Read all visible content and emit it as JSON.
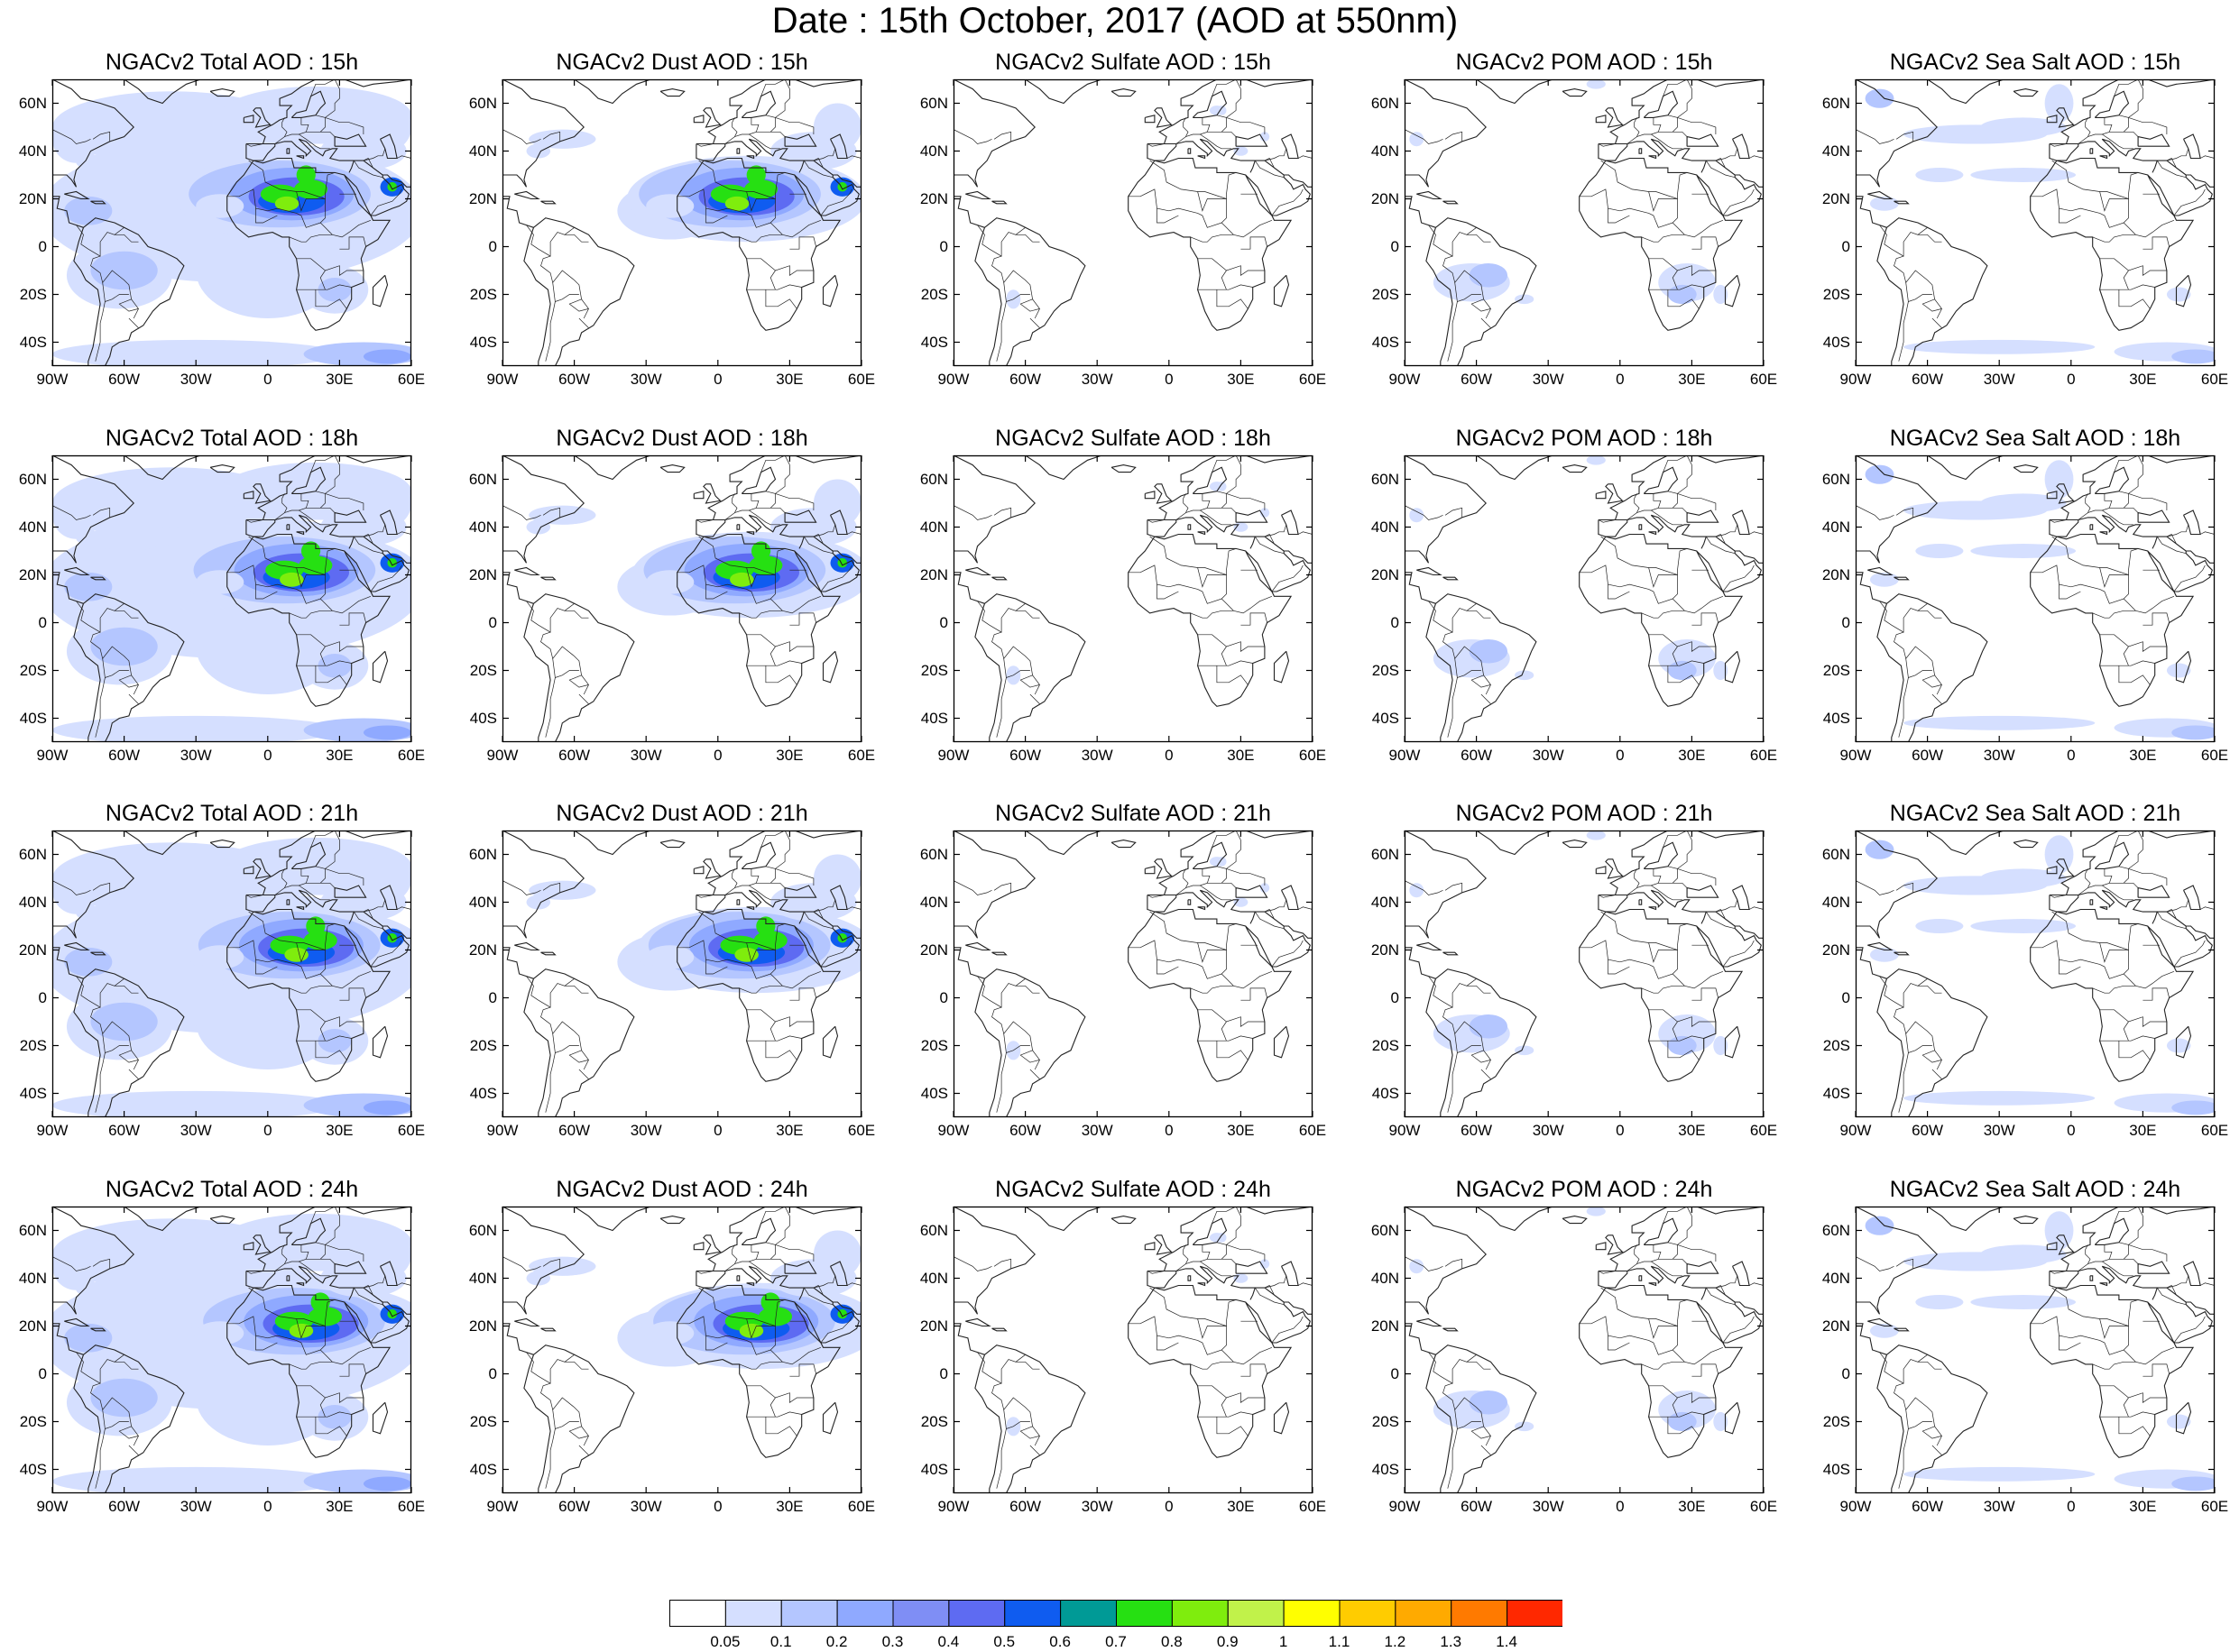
{
  "title": "Date : 15th October, 2017 (AOD at 550nm)",
  "rows": [
    {
      "hour": "15h",
      "panels": [
        {
          "type": "total",
          "title": "NGACv2 Total AOD : 15h"
        },
        {
          "type": "dust",
          "title": "NGACv2 Dust AOD : 15h"
        },
        {
          "type": "sulfate",
          "title": "NGACv2 Sulfate AOD : 15h"
        },
        {
          "type": "pom",
          "title": "NGACv2 POM AOD : 15h"
        },
        {
          "type": "seasalt",
          "title": "NGACv2 Sea Salt AOD : 15h"
        }
      ]
    },
    {
      "hour": "18h",
      "panels": [
        {
          "type": "total",
          "title": "NGACv2 Total AOD : 18h"
        },
        {
          "type": "dust",
          "title": "NGACv2 Dust AOD : 18h"
        },
        {
          "type": "sulfate",
          "title": "NGACv2 Sulfate AOD : 18h"
        },
        {
          "type": "pom",
          "title": "NGACv2 POM AOD : 18h"
        },
        {
          "type": "seasalt",
          "title": "NGACv2 Sea Salt AOD : 18h"
        }
      ]
    },
    {
      "hour": "21h",
      "panels": [
        {
          "type": "total",
          "title": "NGACv2 Total AOD : 21h"
        },
        {
          "type": "dust",
          "title": "NGACv2 Dust AOD : 21h"
        },
        {
          "type": "sulfate",
          "title": "NGACv2 Sulfate AOD : 21h"
        },
        {
          "type": "pom",
          "title": "NGACv2 POM AOD : 21h"
        },
        {
          "type": "seasalt",
          "title": "NGACv2 Sea Salt AOD : 21h"
        }
      ]
    },
    {
      "hour": "24h",
      "panels": [
        {
          "type": "total",
          "title": "NGACv2 Total AOD : 24h"
        },
        {
          "type": "dust",
          "title": "NGACv2 Dust AOD : 24h"
        },
        {
          "type": "sulfate",
          "title": "NGACv2 Sulfate AOD : 24h"
        },
        {
          "type": "pom",
          "title": "NGACv2 POM AOD : 24h"
        },
        {
          "type": "seasalt",
          "title": "NGACv2 Sea Salt  AOD : 24h"
        }
      ]
    }
  ],
  "lat_labels": [
    "60N",
    "40N",
    "20N",
    "0",
    "20S",
    "40S"
  ],
  "lat_values": [
    60,
    40,
    20,
    0,
    -20,
    -40
  ],
  "lon_labels": [
    "90W",
    "60W",
    "30W",
    "0",
    "30E",
    "60E"
  ],
  "lon_values": [
    -90,
    -60,
    -30,
    0,
    30,
    60
  ],
  "map_extent": {
    "lon": [
      -90,
      60
    ],
    "lat": [
      -50,
      70
    ]
  },
  "colorbar": {
    "colors": [
      "#ffffff",
      "#d5dfff",
      "#b4c6ff",
      "#8fa9ff",
      "#7f8ef5",
      "#5e6bf2",
      "#0f5cf0",
      "#009a96",
      "#26e012",
      "#7fed0d",
      "#c1f24a",
      "#ffff00",
      "#ffcc00",
      "#ffaa00",
      "#ff7a00",
      "#ff2800"
    ],
    "labels": [
      "0.05",
      "0.1",
      "0.2",
      "0.3",
      "0.4",
      "0.5",
      "0.6",
      "0.7",
      "0.8",
      "0.9",
      "1",
      "1.1",
      "1.2",
      "1.3",
      "1.4"
    ]
  }
}
